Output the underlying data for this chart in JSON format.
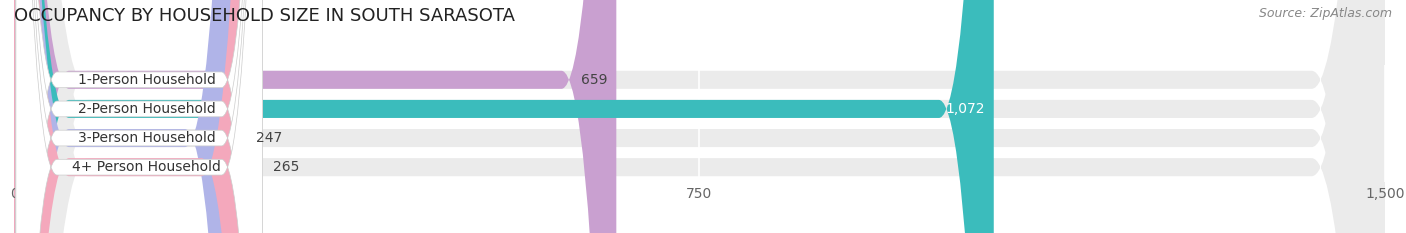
{
  "title": "OCCUPANCY BY HOUSEHOLD SIZE IN SOUTH SARASOTA",
  "source": "Source: ZipAtlas.com",
  "categories": [
    "1-Person Household",
    "2-Person Household",
    "3-Person Household",
    "4+ Person Household"
  ],
  "values": [
    659,
    1072,
    247,
    265
  ],
  "bar_colors": [
    "#c9a0d0",
    "#3bbcbc",
    "#b0b4e8",
    "#f4a8bc"
  ],
  "bar_label_colors": [
    "#444444",
    "#ffffff",
    "#444444",
    "#444444"
  ],
  "bar_labels": [
    "659",
    "1,072",
    "247",
    "265"
  ],
  "xlim": [
    0,
    1500
  ],
  "xticks": [
    0,
    750,
    1500
  ],
  "background_color": "#ffffff",
  "bar_background_color": "#ebebeb",
  "title_fontsize": 13,
  "source_fontsize": 9,
  "label_fontsize": 10,
  "tick_fontsize": 10,
  "bar_height": 0.62,
  "figsize": [
    14.06,
    2.33
  ],
  "dpi": 100
}
